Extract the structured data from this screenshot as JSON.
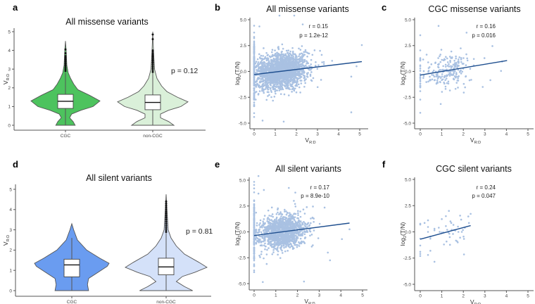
{
  "colors": {
    "green_cgc": "#4dc35e",
    "green_noncgc": "#daf0d9",
    "blue_cgc": "#6a9cf0",
    "blue_noncgc": "#d4e1f9",
    "point": "#a9c1e2",
    "fit_line": "#1f4f8f",
    "outline": "#555555"
  },
  "labels": {
    "vrd_main": "V",
    "vrd_sub": "R:D",
    "log_main": "log",
    "log_sub": "2",
    "log_rest": "(T/N)"
  },
  "chart_data": [
    {
      "panel": "a",
      "type": "violin",
      "title": "All missense variants",
      "ylabel": "V_R:D",
      "ylim": [
        0,
        5
      ],
      "yticks": [
        "0",
        "1",
        "2",
        "3",
        "4",
        "5"
      ],
      "annotation": "p = 0.12",
      "groups": [
        {
          "name": "CGC",
          "color_key": "green_cgc",
          "profile": [
            [
              0,
              0.28
            ],
            [
              0.2,
              0.22
            ],
            [
              0.4,
              0.12
            ],
            [
              0.6,
              0.18
            ],
            [
              0.8,
              0.45
            ],
            [
              1.0,
              0.8
            ],
            [
              1.3,
              1.0
            ],
            [
              1.6,
              0.7
            ],
            [
              1.9,
              0.36
            ],
            [
              2.2,
              0.24
            ],
            [
              2.5,
              0.15
            ],
            [
              2.8,
              0.08
            ],
            [
              3.2,
              0.04
            ],
            [
              4.0,
              0.02
            ],
            [
              4.5,
              0
            ]
          ],
          "box": {
            "q1": 0.9,
            "median": 1.28,
            "q3": 1.65,
            "lo": 0,
            "hi": 2.8
          },
          "outliers": [
            2.9,
            3.0,
            3.1,
            3.2,
            3.3,
            3.4,
            3.5,
            3.6,
            3.7,
            3.85,
            4.05
          ]
        },
        {
          "name": "non-CGC",
          "color_key": "green_noncgc",
          "profile": [
            [
              0,
              0.6
            ],
            [
              0.2,
              0.45
            ],
            [
              0.4,
              0.22
            ],
            [
              0.6,
              0.22
            ],
            [
              0.8,
              0.45
            ],
            [
              1.0,
              0.8
            ],
            [
              1.25,
              1.0
            ],
            [
              1.5,
              0.7
            ],
            [
              1.8,
              0.4
            ],
            [
              2.1,
              0.25
            ],
            [
              2.5,
              0.12
            ],
            [
              3.0,
              0.05
            ],
            [
              4.0,
              0.02
            ],
            [
              5.0,
              0
            ]
          ],
          "box": {
            "q1": 0.83,
            "median": 1.22,
            "q3": 1.62,
            "lo": 0,
            "hi": 2.8
          },
          "outliers": [
            2.85,
            2.95,
            3.05,
            3.15,
            3.25,
            3.35,
            3.45,
            3.55,
            3.65,
            3.75,
            3.85,
            3.95,
            4.0,
            4.6,
            4.85
          ]
        }
      ]
    },
    {
      "panel": "b",
      "type": "scatter",
      "title": "All missense variants",
      "xlabel": "V_R:D",
      "ylabel": "log2(T/N)",
      "xlim": [
        0,
        5
      ],
      "ylim": [
        -5,
        5
      ],
      "xticks": [
        "0",
        "1",
        "2",
        "3",
        "4",
        "5"
      ],
      "yticks": [
        "-5.0",
        "-2.5",
        "0.0",
        "2.5",
        "5.0"
      ],
      "r": "r = 0.15",
      "p": "p = 1.2e-12",
      "fit": [
        [
          0,
          -0.3
        ],
        [
          5.1,
          0.95
        ]
      ],
      "cloud": {
        "n": 1900,
        "x_mean": 1.3,
        "x_sd": 0.6,
        "y_sd": 0.85,
        "zero_column_n": 170,
        "zero_column_sd": 1.6,
        "seed": 7
      },
      "extra_points": [
        [
          5.1,
          2.55
        ],
        [
          4.85,
          0.5
        ],
        [
          4.6,
          -0.5
        ],
        [
          4.6,
          -3.95
        ],
        [
          3.2,
          1.6
        ],
        [
          2.3,
          4.55
        ],
        [
          1.4,
          -4.85
        ],
        [
          0.4,
          -4.75
        ],
        [
          0.25,
          4.35
        ],
        [
          1.2,
          5.4
        ],
        [
          1.9,
          5.4
        ]
      ]
    },
    {
      "panel": "c",
      "type": "scatter",
      "title": "CGC missense variants",
      "xlabel": "V_R:D",
      "ylabel": "log2(T/N)",
      "xlim": [
        0,
        5
      ],
      "ylim": [
        -5,
        5
      ],
      "xticks": [
        "0",
        "1",
        "2",
        "3",
        "4",
        "5"
      ],
      "yticks": [
        "-5.0",
        "-2.5",
        "0.0",
        "2.5",
        "5.0"
      ],
      "r": "r = 0.16",
      "p": "p = 0.016",
      "fit": [
        [
          0,
          -0.35
        ],
        [
          4.03,
          1.05
        ]
      ],
      "cloud": {
        "n": 210,
        "x_mean": 1.3,
        "x_sd": 0.55,
        "y_sd": 0.85,
        "zero_column_n": 26,
        "zero_column_sd": 1.4,
        "seed": 11
      },
      "extra_points": [
        [
          0.85,
          4.4
        ],
        [
          2.15,
          3.75
        ],
        [
          3.35,
          2.45
        ],
        [
          3.75,
          0.05
        ],
        [
          3.8,
          0.95
        ],
        [
          0.95,
          -3.15
        ],
        [
          0,
          -4.0
        ],
        [
          2.9,
          -1.5
        ]
      ]
    },
    {
      "panel": "d",
      "type": "violin",
      "title": "All silent variants",
      "ylabel": "V_R:D",
      "ylim": [
        0,
        5
      ],
      "yticks": [
        "0",
        "1",
        "2",
        "3",
        "4",
        "5"
      ],
      "annotation": "p = 0.81",
      "groups": [
        {
          "name": "CGC",
          "color_key": "blue_cgc",
          "profile": [
            [
              0,
              0.45
            ],
            [
              0.3,
              0.42
            ],
            [
              0.6,
              0.45
            ],
            [
              0.9,
              0.7
            ],
            [
              1.2,
              0.95
            ],
            [
              1.35,
              1.0
            ],
            [
              1.6,
              0.75
            ],
            [
              2.0,
              0.4
            ],
            [
              2.5,
              0.15
            ],
            [
              3.0,
              0.05
            ],
            [
              3.3,
              0
            ]
          ],
          "box": {
            "q1": 0.68,
            "median": 1.27,
            "q3": 1.55,
            "lo": 0,
            "hi": 2.6
          },
          "outliers": []
        },
        {
          "name": "non-CGC",
          "color_key": "blue_noncgc",
          "profile": [
            [
              0,
              0.65
            ],
            [
              0.2,
              0.45
            ],
            [
              0.45,
              0.25
            ],
            [
              0.7,
              0.4
            ],
            [
              0.9,
              0.7
            ],
            [
              1.15,
              1.0
            ],
            [
              1.4,
              0.8
            ],
            [
              1.8,
              0.45
            ],
            [
              2.2,
              0.25
            ],
            [
              2.6,
              0.12
            ],
            [
              3.0,
              0.05
            ],
            [
              4.0,
              0.02
            ],
            [
              4.75,
              0
            ]
          ],
          "box": {
            "q1": 0.78,
            "median": 1.17,
            "q3": 1.6,
            "lo": 0,
            "hi": 2.85
          },
          "outliers": [
            2.9,
            3.0,
            3.1,
            3.2,
            3.3,
            3.4,
            3.5,
            3.6,
            3.7,
            3.8,
            3.9,
            4.0,
            4.1,
            4.2,
            4.3,
            4.4
          ]
        }
      ]
    },
    {
      "panel": "e",
      "type": "scatter",
      "title": "All silent variants",
      "xlabel": "V_R:D",
      "ylabel": "log2(T/N)",
      "xlim": [
        0,
        5
      ],
      "ylim": [
        -5,
        5
      ],
      "xticks": [
        "0",
        "1",
        "2",
        "3",
        "4",
        "5"
      ],
      "yticks": [
        "-5.0",
        "-2.5",
        "0.0",
        "2.5",
        "5.0"
      ],
      "r": "r = 0.17",
      "p": "p = 8.9e-10",
      "fit": [
        [
          0,
          -0.35
        ],
        [
          4.4,
          0.85
        ]
      ],
      "cloud": {
        "n": 1300,
        "x_mean": 1.3,
        "x_sd": 0.55,
        "y_sd": 0.8,
        "zero_column_n": 140,
        "zero_column_sd": 1.6,
        "seed": 23
      },
      "extra_points": [
        [
          0.2,
          5.4
        ],
        [
          0.45,
          4.05
        ],
        [
          0.2,
          3.7
        ],
        [
          1.6,
          4.25
        ],
        [
          1.9,
          3.8
        ],
        [
          4.4,
          0.25
        ],
        [
          4.05,
          -0.7
        ],
        [
          3.4,
          -2.0
        ],
        [
          3.5,
          -2.75
        ],
        [
          2.3,
          -4.8
        ],
        [
          0.4,
          -4.85
        ],
        [
          3.25,
          2.35
        ]
      ]
    },
    {
      "panel": "f",
      "type": "scatter",
      "title": "CGC silent variants",
      "xlabel": "V_R:D",
      "ylabel": "log2(T/N)",
      "xlim": [
        0,
        5
      ],
      "ylim": [
        -5,
        5
      ],
      "xticks": [
        "0",
        "1",
        "2",
        "3",
        "4",
        "5"
      ],
      "yticks": [
        "-5.0",
        "-2.5",
        "0.0",
        "2.5",
        "5.0"
      ],
      "r": "r = 0.24",
      "p": "p = 0.047",
      "fit": [
        [
          0,
          -0.7
        ],
        [
          2.34,
          0.6
        ]
      ],
      "extra_points": [
        [
          0,
          0.78
        ],
        [
          0,
          0.7
        ],
        [
          0,
          -0.65
        ],
        [
          0,
          -1.3
        ],
        [
          0,
          -1.9
        ],
        [
          0,
          -2.1
        ],
        [
          0,
          -2.3
        ],
        [
          0.2,
          0.85
        ],
        [
          0.36,
          1.1
        ],
        [
          0.36,
          0.47
        ],
        [
          0.36,
          0
        ],
        [
          0.36,
          -2.2
        ],
        [
          0.47,
          -0.45
        ],
        [
          0.47,
          -0.65
        ],
        [
          0.47,
          -1.8
        ],
        [
          0.66,
          0.3
        ],
        [
          0.66,
          0.15
        ],
        [
          0.66,
          -2.85
        ],
        [
          0.86,
          0.4
        ],
        [
          0.9,
          0
        ],
        [
          1,
          1.22
        ],
        [
          1,
          -0.05
        ],
        [
          1.08,
          -0.05
        ],
        [
          1.1,
          -1.2
        ],
        [
          1.19,
          1.5
        ],
        [
          1.19,
          0.55
        ],
        [
          1.22,
          -0.92
        ],
        [
          1.25,
          0.2
        ],
        [
          1.3,
          -0.05
        ],
        [
          1.33,
          2.0
        ],
        [
          1.35,
          -0.18
        ],
        [
          1.37,
          -0.5
        ],
        [
          1.38,
          -1.23
        ],
        [
          1.4,
          1.0
        ],
        [
          1.44,
          0.85
        ],
        [
          1.46,
          0.2
        ],
        [
          1.52,
          -0.2
        ],
        [
          1.54,
          0.67
        ],
        [
          1.57,
          0.18
        ],
        [
          1.63,
          0.13
        ],
        [
          1.66,
          -0.83
        ],
        [
          1.71,
          -0.9
        ],
        [
          1.74,
          -1.0
        ],
        [
          1.75,
          0.5
        ],
        [
          1.77,
          0
        ],
        [
          1.85,
          1.55
        ],
        [
          1.85,
          -0.55
        ],
        [
          1.9,
          1.17
        ],
        [
          1.93,
          0
        ],
        [
          1.98,
          0.18
        ],
        [
          2.01,
          -0.45
        ],
        [
          2.03,
          -2.15
        ],
        [
          2.03,
          -0.67
        ],
        [
          2.07,
          0.4
        ],
        [
          2.23,
          1.47
        ],
        [
          2.26,
          0.85
        ],
        [
          2.34,
          1.72
        ]
      ]
    }
  ]
}
